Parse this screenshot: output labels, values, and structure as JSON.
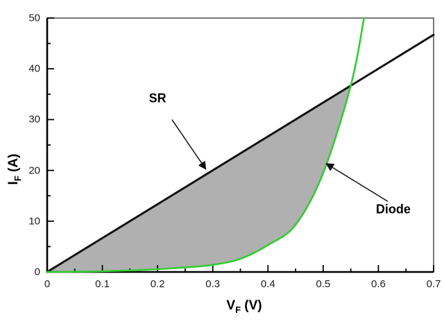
{
  "figure": {
    "background": "#ffffff"
  },
  "chart_data": {
    "type": "line",
    "title": "",
    "xlabel": "VF (V)",
    "ylabel": "IF (A)",
    "xlabel_parts": {
      "main": "V",
      "sub": "F",
      "unit": " (V)"
    },
    "ylabel_parts": {
      "main": "I",
      "sub": "F",
      "unit": " (A)"
    },
    "xlim": [
      0,
      0.7
    ],
    "ylim": [
      0,
      50
    ],
    "x_major_ticks": [
      0,
      0.1,
      0.2,
      0.3,
      0.4,
      0.5,
      0.6,
      0.7
    ],
    "x_tick_labels": [
      "0",
      "0.1",
      "0.2",
      "0.3",
      "0.4",
      "0.5",
      "0.6",
      "0.7"
    ],
    "x_minor_ticks": [
      0.05,
      0.15,
      0.25,
      0.35,
      0.45,
      0.55,
      0.65
    ],
    "y_major_ticks": [
      0,
      10,
      20,
      30,
      40,
      50
    ],
    "y_tick_labels": [
      "0",
      "10",
      "20",
      "30",
      "40",
      "50"
    ],
    "y_minor_ticks": [
      5,
      15,
      25,
      35,
      45
    ],
    "grid": false,
    "legend_position": "none",
    "series": [
      {
        "name": "SR",
        "style": "straight-line",
        "color": "#111111",
        "width": 3,
        "points": [
          [
            0,
            0
          ],
          [
            0.7,
            46.7
          ]
        ]
      },
      {
        "name": "Diode",
        "style": "smooth-curve",
        "color": "#33cc33",
        "width": 2.6,
        "points": [
          [
            0,
            0
          ],
          [
            0.05,
            0.05
          ],
          [
            0.1,
            0.13
          ],
          [
            0.15,
            0.3
          ],
          [
            0.2,
            0.55
          ],
          [
            0.25,
            0.9
          ],
          [
            0.3,
            1.4
          ],
          [
            0.35,
            2.6
          ],
          [
            0.4,
            5.3
          ],
          [
            0.45,
            9.3
          ],
          [
            0.5,
            19.5
          ],
          [
            0.55,
            36.7
          ],
          [
            0.574,
            50
          ]
        ]
      }
    ],
    "fill_between": {
      "upper": "SR",
      "lower": "Diode",
      "x_range": [
        0,
        0.55
      ],
      "color": "#b0b0b0"
    },
    "intersection": [
      0.55,
      36.7
    ],
    "annotations": [
      {
        "id": "sr",
        "label": "SR",
        "label_pos": [
          0.2,
          34.2
        ],
        "arrow_from": [
          0.226,
          30.0
        ],
        "arrow_to": [
          0.287,
          20.3
        ]
      },
      {
        "id": "diode",
        "label": "Diode",
        "label_pos": [
          0.627,
          12.3
        ],
        "arrow_from": [
          0.617,
          13.9
        ],
        "arrow_to": [
          0.506,
          21.3
        ]
      }
    ],
    "colors": {
      "axis": "#000000",
      "frame": "#3f3f3f",
      "tick_text": "#1c1c1c",
      "arrow": "#111111"
    }
  }
}
